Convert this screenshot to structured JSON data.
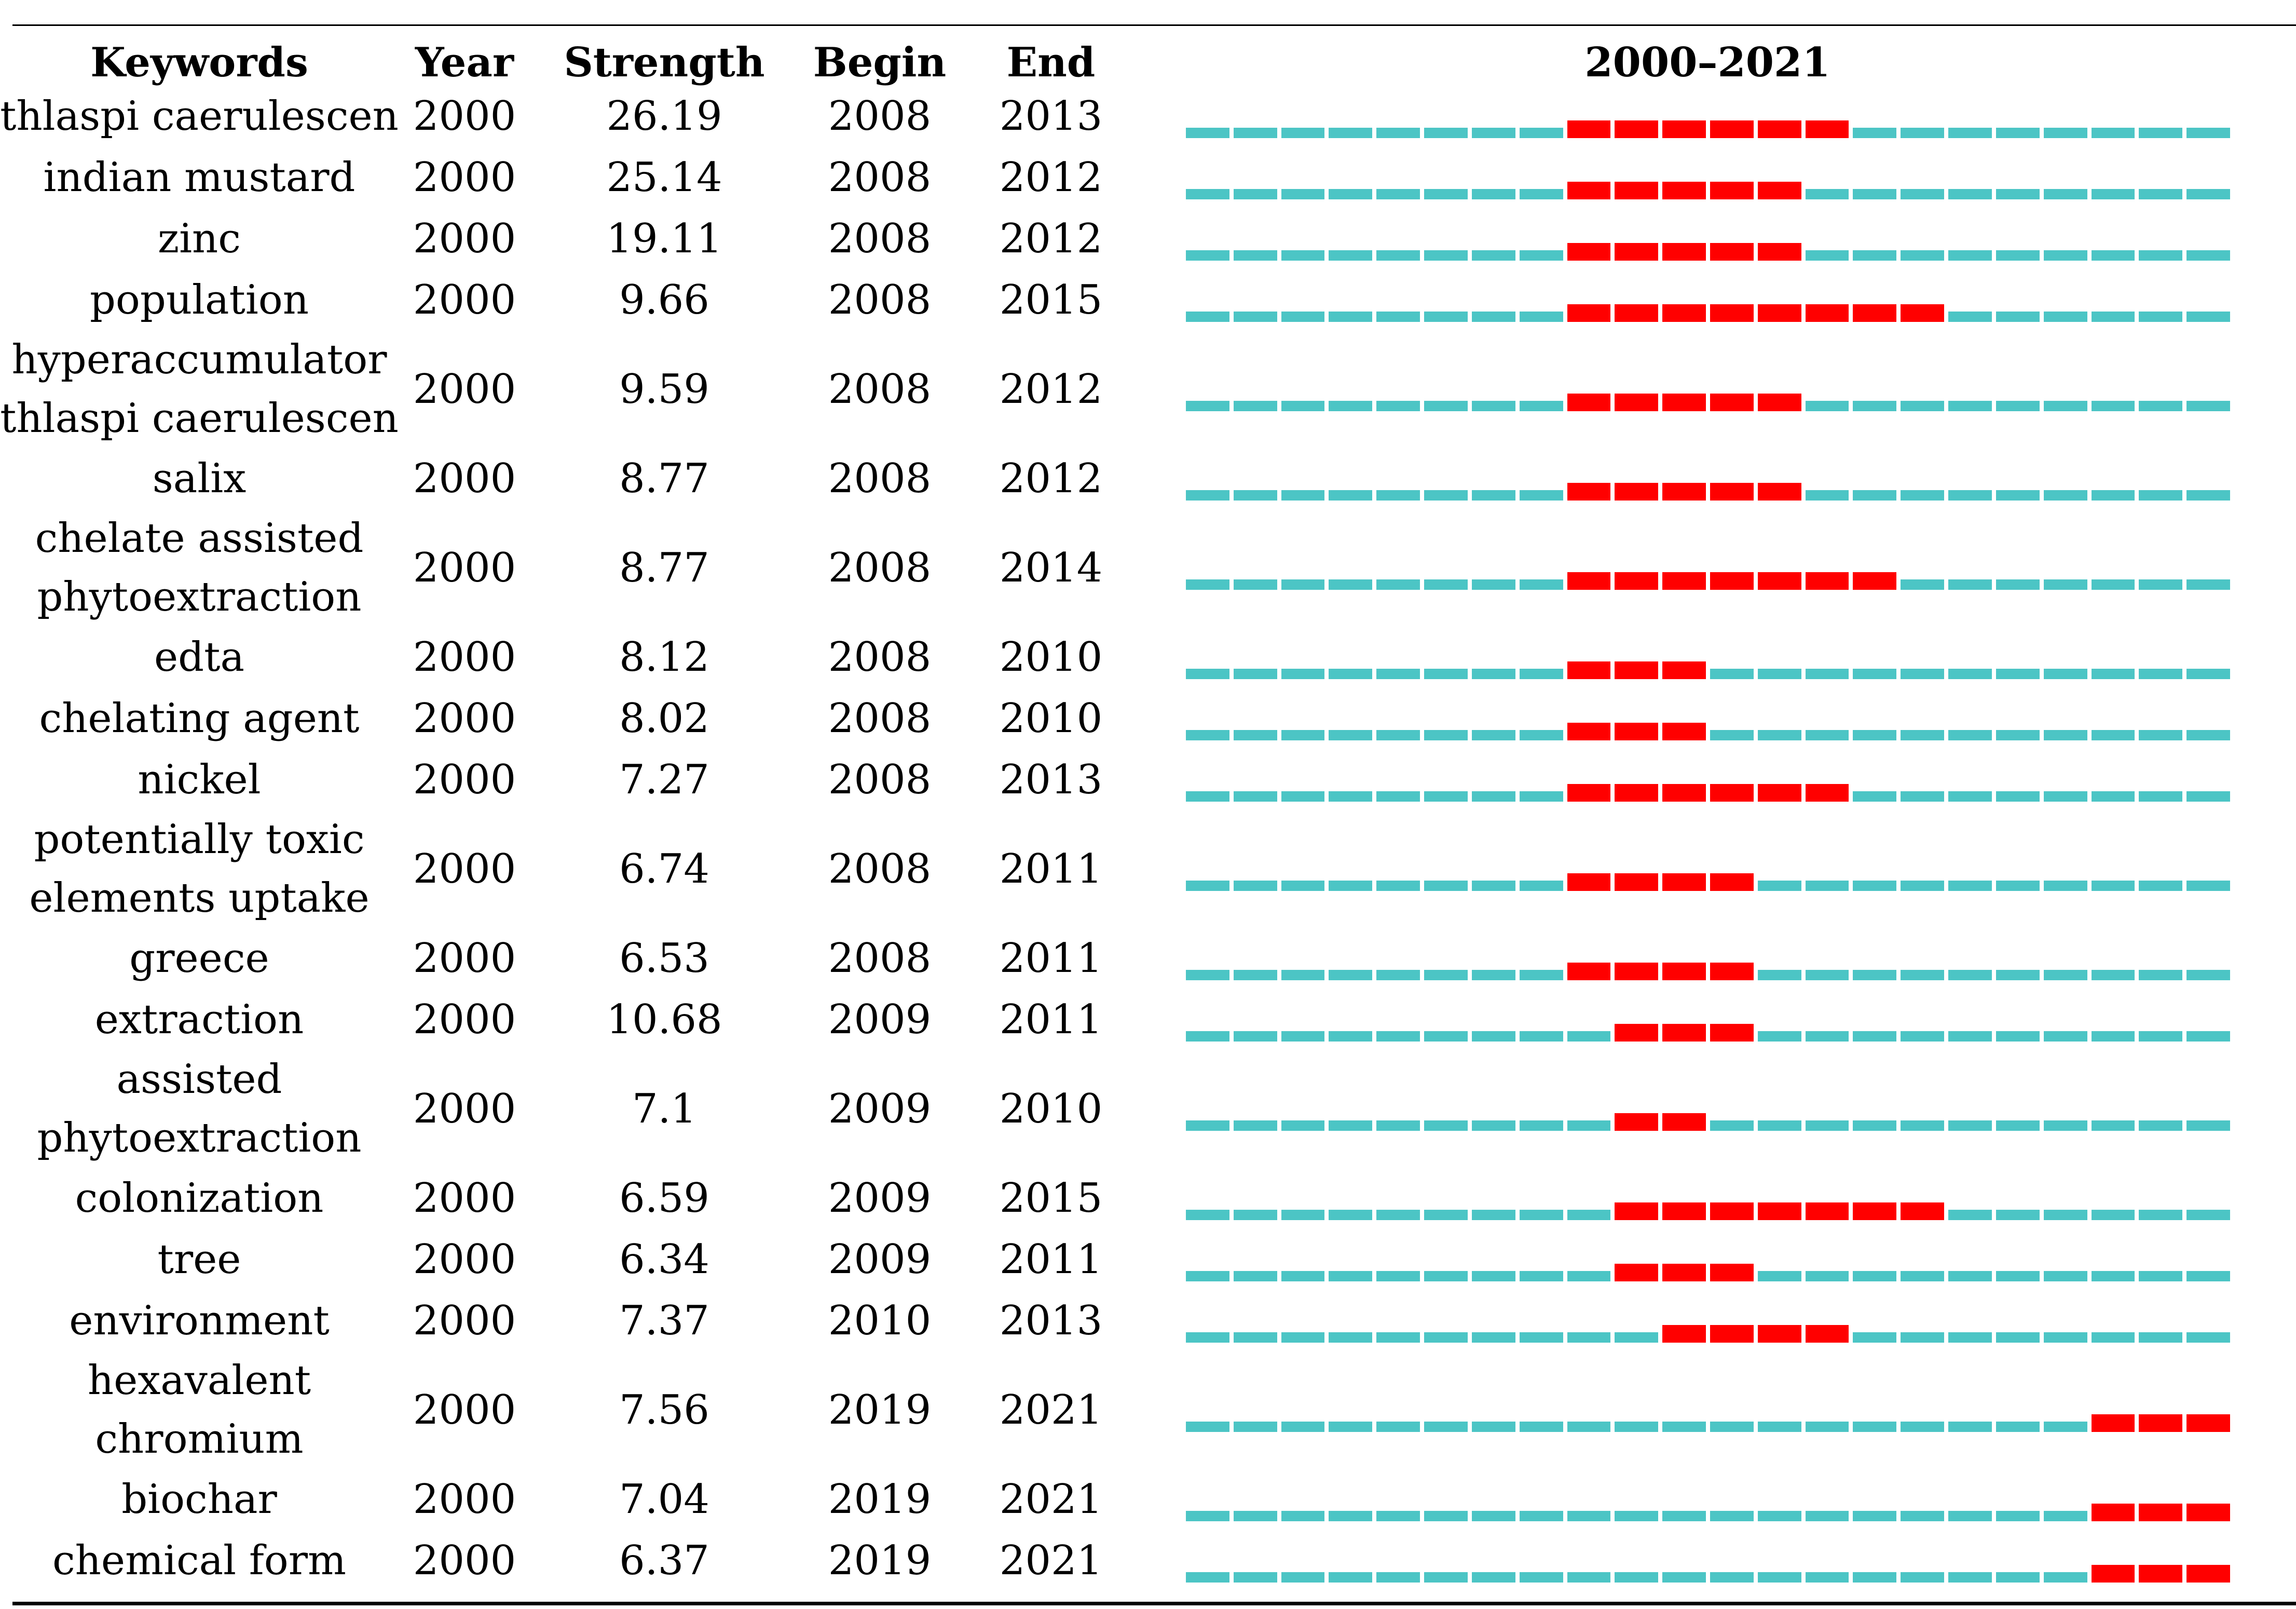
{
  "table": {
    "headers": {
      "keywords": "Keywords",
      "year": "Year",
      "strength": "Strength",
      "begin": "Begin",
      "end": "End",
      "timeline": "2000–2021"
    },
    "timeline": {
      "start_year": 2000,
      "end_year": 2021,
      "inactive_color": "#4cc5c5",
      "burst_color": "#ff0000"
    },
    "rows": [
      {
        "keyword": [
          "thlaspi caerulescen"
        ],
        "year": "2000",
        "strength": "26.19",
        "begin": "2008",
        "end": "2013"
      },
      {
        "keyword": [
          "indian mustard"
        ],
        "year": "2000",
        "strength": "25.14",
        "begin": "2008",
        "end": "2012"
      },
      {
        "keyword": [
          "zinc"
        ],
        "year": "2000",
        "strength": "19.11",
        "begin": "2008",
        "end": "2012"
      },
      {
        "keyword": [
          "population"
        ],
        "year": "2000",
        "strength": "9.66",
        "begin": "2008",
        "end": "2015"
      },
      {
        "keyword": [
          "hyperaccumulator",
          "thlaspi caerulescen"
        ],
        "year": "2000",
        "strength": "9.59",
        "begin": "2008",
        "end": "2012"
      },
      {
        "keyword": [
          "salix"
        ],
        "year": "2000",
        "strength": "8.77",
        "begin": "2008",
        "end": "2012"
      },
      {
        "keyword": [
          "chelate assisted",
          "phytoextraction"
        ],
        "year": "2000",
        "strength": "8.77",
        "begin": "2008",
        "end": "2014"
      },
      {
        "keyword": [
          "edta"
        ],
        "year": "2000",
        "strength": "8.12",
        "begin": "2008",
        "end": "2010"
      },
      {
        "keyword": [
          "chelating agent"
        ],
        "year": "2000",
        "strength": "8.02",
        "begin": "2008",
        "end": "2010"
      },
      {
        "keyword": [
          "nickel"
        ],
        "year": "2000",
        "strength": "7.27",
        "begin": "2008",
        "end": "2013"
      },
      {
        "keyword": [
          "potentially toxic",
          "elements uptake"
        ],
        "year": "2000",
        "strength": "6.74",
        "begin": "2008",
        "end": "2011"
      },
      {
        "keyword": [
          "greece"
        ],
        "year": "2000",
        "strength": "6.53",
        "begin": "2008",
        "end": "2011"
      },
      {
        "keyword": [
          "extraction"
        ],
        "year": "2000",
        "strength": "10.68",
        "begin": "2009",
        "end": "2011"
      },
      {
        "keyword": [
          "assisted",
          "phytoextraction"
        ],
        "year": "2000",
        "strength": "7.1",
        "begin": "2009",
        "end": "2010"
      },
      {
        "keyword": [
          "colonization"
        ],
        "year": "2000",
        "strength": "6.59",
        "begin": "2009",
        "end": "2015"
      },
      {
        "keyword": [
          "tree"
        ],
        "year": "2000",
        "strength": "6.34",
        "begin": "2009",
        "end": "2011"
      },
      {
        "keyword": [
          "environment"
        ],
        "year": "2000",
        "strength": "7.37",
        "begin": "2010",
        "end": "2013"
      },
      {
        "keyword": [
          "hexavalent",
          "chromium"
        ],
        "year": "2000",
        "strength": "7.56",
        "begin": "2019",
        "end": "2021"
      },
      {
        "keyword": [
          "biochar"
        ],
        "year": "2000",
        "strength": "7.04",
        "begin": "2019",
        "end": "2021"
      },
      {
        "keyword": [
          "chemical form"
        ],
        "year": "2000",
        "strength": "6.37",
        "begin": "2019",
        "end": "2021"
      }
    ]
  }
}
